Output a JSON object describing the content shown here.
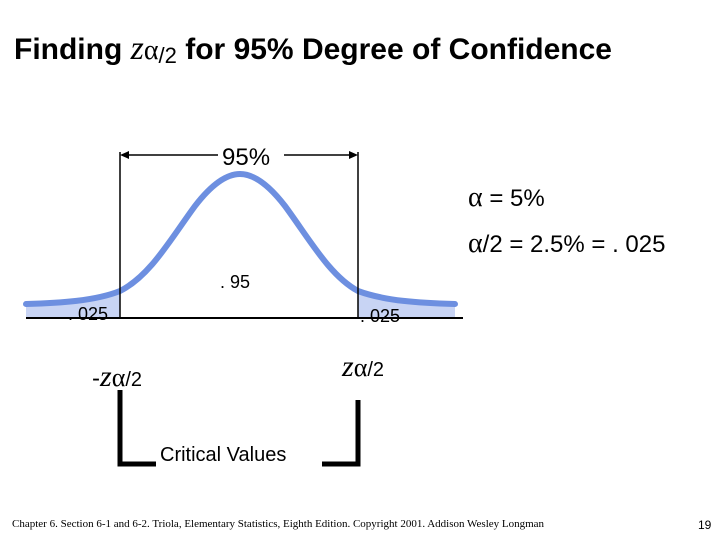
{
  "title": {
    "prefix": "Finding ",
    "z": "z",
    "alpha": "α",
    "half": "/2",
    "suffix": " for 95% Degree of Confidence"
  },
  "labels": {
    "confidence_pct": "95%",
    "alpha_prefix": " = 5%",
    "alpha_symbol": "α",
    "alpha_half_symbol": "α",
    "alpha_half_text": "/2 = 2.5% = . 025",
    "center_area": ". 95",
    "left_tail": ". 025",
    "right_tail": ". 025",
    "neg_sign": "-",
    "z": "z",
    "alpha": "α",
    "half": "/2",
    "critical_values": "Critical Values"
  },
  "footer": {
    "citation": "Chapter 6. Section 6-1 and 6-2. Triola, Elementary Statistics, Eighth Edition. Copyright 2001. Addison Wesley Longman",
    "page_number": "19"
  },
  "colors": {
    "curve": "#6d8fe0",
    "tail_fill": "#c8d4f4",
    "axis": "#000000",
    "bracket": "#000000"
  }
}
